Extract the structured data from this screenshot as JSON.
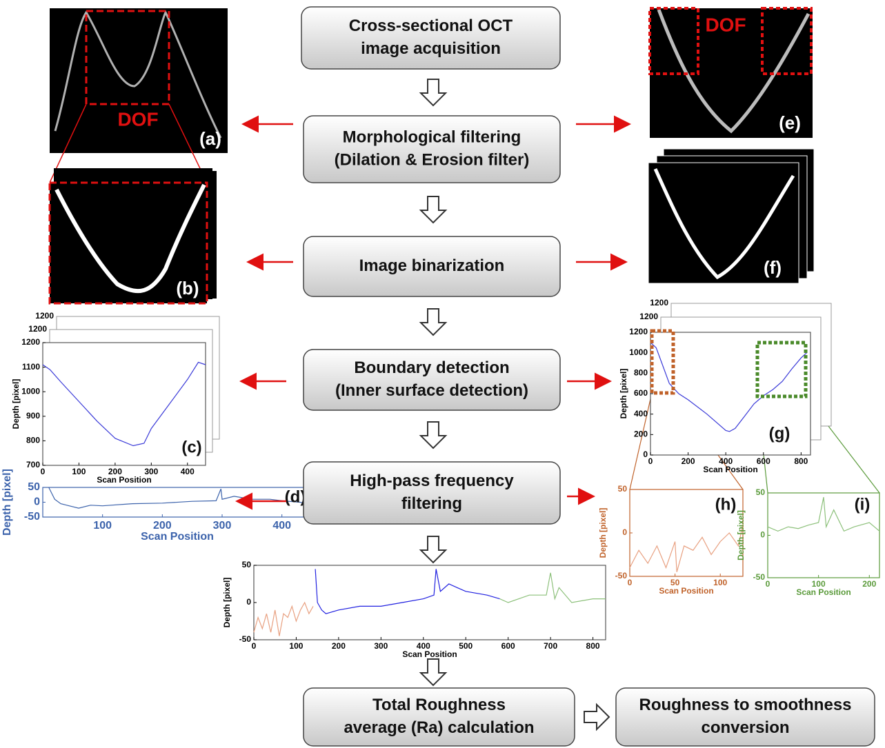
{
  "steps": [
    {
      "lines": [
        "Cross-sectional OCT",
        "image acquisition"
      ]
    },
    {
      "lines": [
        "Morphological filtering",
        "(Dilation & Erosion filter)"
      ]
    },
    {
      "lines": [
        "Image binarization"
      ]
    },
    {
      "lines": [
        "Boundary detection",
        "(Inner surface detection)"
      ]
    },
    {
      "lines": [
        "High-pass frequency",
        "filtering"
      ]
    },
    {
      "lines": [
        "Total Roughness",
        "average (Ra) calculation"
      ]
    },
    {
      "lines": [
        "Roughness to smoothness",
        "conversion"
      ]
    }
  ],
  "panels": {
    "a": "(a)",
    "b": "(b)",
    "e": "(e)",
    "f": "(f)"
  },
  "dof": [
    "DOF",
    "DOF"
  ],
  "plots": {
    "c": {
      "label": "(c)",
      "xlabel": "Scan Position",
      "ylabel": "Depth [pixel]",
      "color": "#000000",
      "xlim": [
        0,
        450
      ],
      "ylim": [
        700,
        1200
      ],
      "xticks": [
        0,
        100,
        200,
        300,
        400
      ],
      "yticks": [
        700,
        800,
        900,
        1000,
        1100,
        1200
      ],
      "stack_labels": [
        1200,
        1200
      ],
      "series": [
        {
          "color": "#3a3ad8",
          "x": [
            0,
            20,
            50,
            100,
            150,
            200,
            250,
            280,
            300,
            350,
            400,
            430,
            450
          ],
          "y": [
            1110,
            1090,
            1040,
            960,
            880,
            810,
            780,
            790,
            850,
            950,
            1050,
            1120,
            1110
          ]
        }
      ]
    },
    "d": {
      "label": "(d)",
      "xlabel": "Scan Position",
      "ylabel": "Depth [pixel]",
      "color": "#3b62ab",
      "xlim": [
        0,
        450
      ],
      "ylim": [
        -50,
        50
      ],
      "xticks": [
        100,
        200,
        300,
        400
      ],
      "yticks": [
        -50,
        0,
        50
      ],
      "series": [
        {
          "color": "#3b62ab",
          "x": [
            10,
            15,
            20,
            30,
            40,
            60,
            80,
            100,
            150,
            200,
            250,
            290,
            298,
            300,
            320,
            350,
            380,
            400,
            430,
            440,
            450
          ],
          "y": [
            50,
            30,
            10,
            -5,
            -10,
            -20,
            -10,
            -12,
            -5,
            -3,
            3,
            5,
            45,
            10,
            20,
            10,
            10,
            5,
            0,
            -3,
            -5
          ]
        }
      ]
    },
    "g": {
      "label": "(g)",
      "xlabel": "Scan Position",
      "ylabel": "Depth [pixel]",
      "color": "#000000",
      "xlim": [
        0,
        850
      ],
      "ylim": [
        0,
        1200
      ],
      "xticks": [
        0,
        200,
        400,
        600,
        800
      ],
      "yticks": [
        0,
        200,
        400,
        600,
        800,
        1000,
        1200
      ],
      "stack_labels": [
        1200,
        1200
      ],
      "series": [
        {
          "color": "#3a3ad8",
          "x": [
            0,
            30,
            60,
            100,
            150,
            200,
            300,
            400,
            420,
            450,
            500,
            550,
            600,
            650,
            700,
            750,
            800,
            830
          ],
          "y": [
            1100,
            1050,
            900,
            700,
            600,
            540,
            400,
            240,
            230,
            260,
            380,
            500,
            580,
            640,
            720,
            840,
            950,
            1000
          ]
        }
      ]
    },
    "h": {
      "label": "(h)",
      "xlabel": "Scan Position",
      "ylabel": "Depth [pixel]",
      "color": "#c0622a",
      "xlim": [
        0,
        125
      ],
      "ylim": [
        -50,
        50
      ],
      "xticks": [
        0,
        50,
        100
      ],
      "yticks": [
        -50,
        0,
        50
      ],
      "series": [
        {
          "color": "#e8a080",
          "x": [
            0,
            10,
            20,
            30,
            40,
            50,
            52,
            60,
            70,
            80,
            90,
            100,
            110,
            120,
            125
          ],
          "y": [
            -40,
            -20,
            -35,
            -15,
            -40,
            -10,
            -45,
            -15,
            -20,
            -5,
            -25,
            -10,
            0,
            -15,
            10
          ]
        }
      ]
    },
    "i": {
      "label": "(i)",
      "xlabel": "Scan Position",
      "ylabel": "Depth [pixel]",
      "color": "#5a9a3a",
      "xlim": [
        0,
        220
      ],
      "ylim": [
        -50,
        50
      ],
      "xticks": [
        0,
        100,
        200
      ],
      "yticks": [
        -50,
        0,
        50
      ],
      "series": [
        {
          "color": "#8cc07a",
          "x": [
            0,
            20,
            40,
            60,
            80,
            100,
            110,
            115,
            130,
            150,
            170,
            200,
            220
          ],
          "y": [
            10,
            5,
            10,
            8,
            12,
            15,
            45,
            10,
            30,
            5,
            10,
            15,
            5
          ]
        }
      ]
    },
    "combined": {
      "xlabel": "Scan Position",
      "ylabel": "Depth [pixel]",
      "color": "#000000",
      "xlim": [
        0,
        830
      ],
      "ylim": [
        -50,
        50
      ],
      "xticks": [
        0,
        100,
        200,
        300,
        400,
        500,
        600,
        700,
        800
      ],
      "yticks": [
        -50,
        0,
        50
      ],
      "series": [
        {
          "color": "#e8a080",
          "x": [
            0,
            10,
            20,
            30,
            40,
            50,
            60,
            70,
            80,
            90,
            100,
            110,
            120,
            130,
            140
          ],
          "y": [
            -40,
            -20,
            -35,
            -15,
            -40,
            -10,
            -45,
            -15,
            -20,
            -5,
            -25,
            -10,
            0,
            -15,
            -5
          ]
        },
        {
          "color": "#2020e0",
          "x": [
            145,
            150,
            160,
            170,
            200,
            250,
            300,
            350,
            400,
            425,
            430,
            440,
            460,
            480,
            500,
            550,
            580
          ],
          "y": [
            45,
            0,
            -10,
            -15,
            -10,
            -5,
            -5,
            0,
            5,
            10,
            45,
            15,
            25,
            20,
            15,
            10,
            5
          ]
        },
        {
          "color": "#8cc07a",
          "x": [
            580,
            600,
            650,
            690,
            700,
            710,
            720,
            750,
            800,
            830
          ],
          "y": [
            5,
            0,
            10,
            10,
            40,
            5,
            20,
            0,
            5,
            5
          ]
        }
      ]
    }
  }
}
